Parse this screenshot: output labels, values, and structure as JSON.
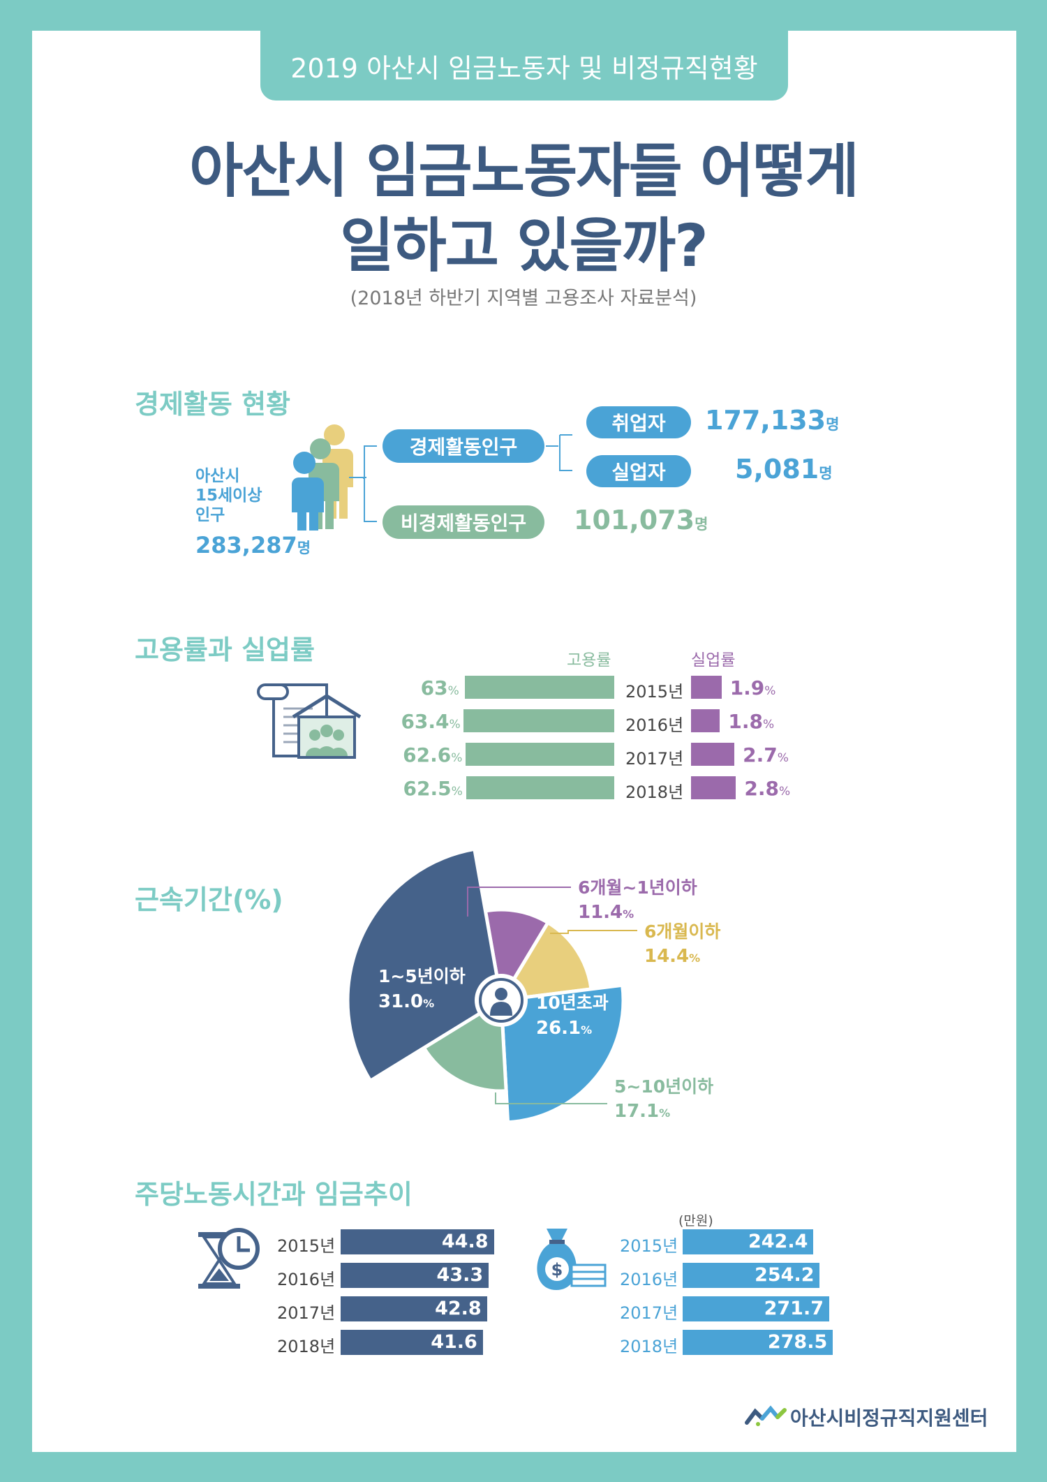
{
  "header": {
    "banner": "2019 아산시 임금노동자 및 비정규직현황",
    "title_line1": "아산시 임금노동자들 어떻게",
    "title_line2": "일하고 있을까?",
    "subtitle": "(2018년 하반기 지역별 고용조사 자료분석)"
  },
  "economic": {
    "section_title": "경제활동 현황",
    "population_label": [
      "아산시",
      "15세이상",
      "인구"
    ],
    "population_value": "283,287",
    "population_unit": "명",
    "active_label": "경제활동인구",
    "employed_label": "취업자",
    "employed_value": "177,133",
    "employed_unit": "명",
    "unemployed_label": "실업자",
    "unemployed_value": "5,081",
    "unemployed_unit": "명",
    "inactive_label": "비경제활동인구",
    "inactive_value": "101,073",
    "inactive_unit": "명"
  },
  "colors": {
    "teal": "#7ccbc4",
    "navy": "#3d5a80",
    "blue": "#4aa3d6",
    "green": "#88bb9e",
    "purple": "#9b6aab",
    "yellow": "#e8cf7d",
    "darknavy": "#45628a"
  },
  "chart_data": [
    {
      "type": "bar",
      "title": "고용률과 실업률",
      "categories": [
        "2015년",
        "2016년",
        "2017년",
        "2018년"
      ],
      "series": [
        {
          "name": "고용률",
          "values": [
            63,
            63.4,
            62.6,
            62.5
          ],
          "labels": [
            "63",
            "63.4",
            "62.6",
            "62.5"
          ],
          "unit": "%"
        },
        {
          "name": "실업률",
          "values": [
            1.9,
            1.8,
            2.7,
            2.8
          ],
          "labels": [
            "1.9",
            "1.8",
            "2.7",
            "2.8"
          ],
          "unit": "%"
        }
      ]
    },
    {
      "type": "pie",
      "title": "근속기간(%)",
      "slices": [
        {
          "label": "6개월~1년이하",
          "value": 11.4,
          "display": "11.4"
        },
        {
          "label": "6개월이하",
          "value": 14.4,
          "display": "14.4"
        },
        {
          "label": "10년초과",
          "value": 26.1,
          "display": "26.1"
        },
        {
          "label": "5~10년이하",
          "value": 17.1,
          "display": "17.1"
        },
        {
          "label": "1~5년이하",
          "value": 31.0,
          "display": "31.0"
        }
      ],
      "unit": "%"
    },
    {
      "type": "bar",
      "title": "주당노동시간과 임금추이",
      "subtitle_hours": "",
      "categories": [
        "2015년",
        "2016년",
        "2017년",
        "2018년"
      ],
      "series": [
        {
          "name": "주당노동시간",
          "values": [
            44.8,
            43.3,
            42.8,
            41.6
          ],
          "labels": [
            "44.8",
            "43.3",
            "42.8",
            "41.6"
          ]
        },
        {
          "name": "임금",
          "unit_label": "(만원)",
          "values": [
            242.4,
            254.2,
            271.7,
            278.5
          ],
          "labels": [
            "242.4",
            "254.2",
            "271.7",
            "278.5"
          ]
        }
      ]
    }
  ],
  "rates": {
    "section_title": "고용률과 실업률",
    "employment_header": "고용률",
    "unemployment_header": "실업률",
    "pct": "%"
  },
  "tenure": {
    "section_title": "근속기간(%)",
    "pct": "%"
  },
  "hours_wage": {
    "section_title": "주당노동시간과 임금추이",
    "wage_unit": "(만원)"
  },
  "footer": {
    "org_name": "아산시비정규직지원센터"
  }
}
